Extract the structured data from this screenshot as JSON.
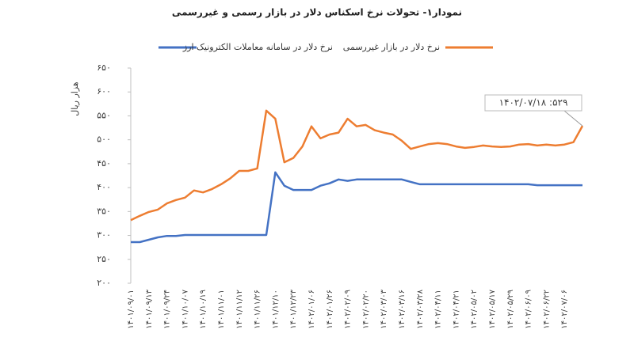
{
  "chart_data": {
    "type": "line",
    "title": "نمودار۱- تحولات نرخ اسکناس دلار در بازار رسمی و غیررسمی",
    "y_label": "هزار ریال",
    "annotation": "۱۴۰۲/۰۷/۱۸ :۵۲۹",
    "categories": [
      "۱۴۰۱/۰۹/۰۱",
      null,
      "۱۴۰۱/۰۹/۱۳",
      null,
      "۱۴۰۱/۰۹/۲۴",
      null,
      "۱۴۰۱/۱۰/۰۷",
      null,
      "۱۴۰۱/۱۰/۱۹",
      null,
      "۱۴۰۱/۱۱/۰۱",
      null,
      "۱۴۰۱/۱۱/۱۲",
      null,
      "۱۴۰۱/۱۱/۲۶",
      null,
      "۱۴۰۱/۱۲/۱۰",
      null,
      "۱۴۰۱/۱۲/۲۳",
      null,
      "۱۴۰۲/۰۱/۰۶",
      null,
      "۱۴۰۲/۰۱/۲۶",
      null,
      "۱۴۰۲/۰۲/۰۹",
      null,
      "۱۴۰۲/۰۲/۲۰",
      null,
      "۱۴۰۲/۰۳/۰۳",
      null,
      "۱۴۰۲/۰۳/۱۶",
      null,
      "۱۴۰۲/۰۳/۲۸",
      null,
      "۱۴۰۲/۰۴/۱۱",
      null,
      "۱۴۰۲/۰۴/۲۱",
      null,
      "۱۴۰۲/۰۵/۰۲",
      null,
      "۱۴۰۲/۰۵/۱۷",
      null,
      "۱۴۰۲/۰۵/۲۹",
      null,
      "۱۴۰۲/۰۶/۰۹",
      null,
      "۱۴۰۲/۰۶/۲۲",
      null,
      "۱۴۰۲/۰۷/۰۶",
      null,
      null
    ],
    "series": [
      {
        "name": "نرخ دلار در بازار غیررسمی",
        "color": "#ed7d31",
        "values": [
          332,
          341,
          349,
          354,
          367,
          374,
          379,
          394,
          390,
          397,
          407,
          419,
          435,
          435,
          440,
          561,
          544,
          453,
          462,
          486,
          528,
          503,
          511,
          515,
          544,
          528,
          531,
          520,
          515,
          511,
          498,
          481,
          486,
          491,
          493,
          491,
          486,
          483,
          485,
          488,
          486,
          485,
          486,
          490,
          491,
          488,
          490,
          488,
          490,
          495,
          529
        ]
      },
      {
        "name": "نرخ دلار در سامانه معاملات الکترونیک ارز",
        "color": "#4472c4",
        "values": [
          286,
          286,
          291,
          296,
          299,
          299,
          301,
          301,
          301,
          301,
          301,
          301,
          301,
          301,
          301,
          301,
          432,
          404,
          395,
          395,
          395,
          404,
          409,
          417,
          414,
          417,
          417,
          417,
          417,
          417,
          417,
          412,
          407,
          407,
          407,
          407,
          407,
          407,
          407,
          407,
          407,
          407,
          407,
          407,
          407,
          405,
          405,
          405,
          405,
          405,
          405
        ]
      }
    ],
    "ylim": [
      200,
      650
    ],
    "yticks": [
      {
        "value": 200,
        "label": "۲۰۰"
      },
      {
        "value": 250,
        "label": "۲۵۰"
      },
      {
        "value": 300,
        "label": "۳۰۰"
      },
      {
        "value": 350,
        "label": "۳۵۰"
      },
      {
        "value": 400,
        "label": "۴۰۰"
      },
      {
        "value": 450,
        "label": "۴۵۰"
      },
      {
        "value": 500,
        "label": "۵۰۰"
      },
      {
        "value": 550,
        "label": "۵۵۰"
      },
      {
        "value": 600,
        "label": "۶۰۰"
      },
      {
        "value": 650,
        "label": "۶۵۰"
      }
    ],
    "grid": false
  }
}
